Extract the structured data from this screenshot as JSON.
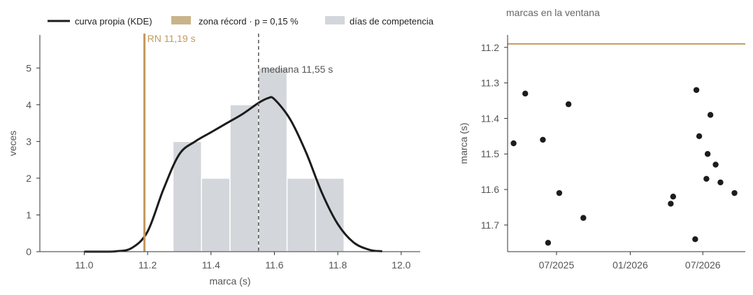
{
  "chart_data": [
    {
      "type": "bar",
      "title": "",
      "xlabel": "marca (s)",
      "ylabel": "veces",
      "xlim": [
        10.86,
        12.06
      ],
      "ylim": [
        0,
        5.9
      ],
      "x_ticks": [
        "11.0",
        "11.2",
        "11.4",
        "11.6",
        "11.8",
        "12.0"
      ],
      "y_ticks": [
        "0",
        "1",
        "2",
        "3",
        "4",
        "5"
      ],
      "legend": {
        "position": "top",
        "entries": [
          "curva propia (KDE)",
          "zona récord · p = 0,15 %",
          "días de competencia"
        ]
      },
      "histogram": {
        "name": "días de competencia",
        "color": "#d3d6da",
        "bins": [
          {
            "x0": 11.28,
            "x1": 11.37,
            "count": 3
          },
          {
            "x0": 11.37,
            "x1": 11.46,
            "count": 2
          },
          {
            "x0": 11.46,
            "x1": 11.55,
            "count": 4
          },
          {
            "x0": 11.55,
            "x1": 11.64,
            "count": 5
          },
          {
            "x0": 11.64,
            "x1": 11.73,
            "count": 2
          },
          {
            "x0": 11.73,
            "x1": 11.82,
            "count": 2
          }
        ]
      },
      "kde": {
        "name": "curva propia (KDE)",
        "color": "#1c1c1c",
        "x": [
          11.0,
          11.05,
          11.1,
          11.15,
          11.2,
          11.25,
          11.3,
          11.35,
          11.4,
          11.45,
          11.5,
          11.55,
          11.58,
          11.6,
          11.65,
          11.7,
          11.75,
          11.8,
          11.85,
          11.9,
          11.94
        ],
        "y": [
          0,
          0,
          0.01,
          0.1,
          0.55,
          1.7,
          2.65,
          3.0,
          3.25,
          3.5,
          3.75,
          4.05,
          4.18,
          4.15,
          3.6,
          2.7,
          1.6,
          0.75,
          0.25,
          0.05,
          0.01
        ]
      },
      "annotations": [
        {
          "kind": "vline",
          "x": 11.19,
          "color": "#c2995c",
          "label": "RN 11,19 s"
        },
        {
          "kind": "vline-dashed",
          "x": 11.55,
          "color": "#555555",
          "label": "mediana 11,55 s"
        }
      ],
      "record_zone_color": "#c9b48a"
    },
    {
      "type": "scatter",
      "title": "marcas en la ventana",
      "xlabel": "",
      "ylabel": "marca (s)",
      "y_inverted": true,
      "ylim": [
        11.165,
        11.775
      ],
      "xlim": [
        "2025-03-01",
        "2026-10-15"
      ],
      "x_ticks": [
        "07/2025",
        "01/2026",
        "07/2026"
      ],
      "y_ticks": [
        "11.2",
        "11.3",
        "11.4",
        "11.5",
        "11.6",
        "11.7"
      ],
      "points": [
        {
          "x": "2025-03-16",
          "y": 11.47
        },
        {
          "x": "2025-04-14",
          "y": 11.33
        },
        {
          "x": "2025-05-28",
          "y": 11.46
        },
        {
          "x": "2025-06-10",
          "y": 11.75
        },
        {
          "x": "2025-07-08",
          "y": 11.61
        },
        {
          "x": "2025-07-31",
          "y": 11.36
        },
        {
          "x": "2025-09-06",
          "y": 11.68
        },
        {
          "x": "2026-04-12",
          "y": 11.64
        },
        {
          "x": "2026-04-18",
          "y": 11.62
        },
        {
          "x": "2026-06-12",
          "y": 11.74
        },
        {
          "x": "2026-06-15",
          "y": 11.32
        },
        {
          "x": "2026-06-22",
          "y": 11.45
        },
        {
          "x": "2026-07-10",
          "y": 11.57
        },
        {
          "x": "2026-07-13",
          "y": 11.5
        },
        {
          "x": "2026-07-20",
          "y": 11.39
        },
        {
          "x": "2026-08-02",
          "y": 11.53
        },
        {
          "x": "2026-08-14",
          "y": 11.58
        },
        {
          "x": "2026-09-18",
          "y": 11.61
        }
      ],
      "reference_line": {
        "y": 11.19,
        "color": "#c2995c"
      },
      "point_color": "#1c1c1c"
    }
  ]
}
